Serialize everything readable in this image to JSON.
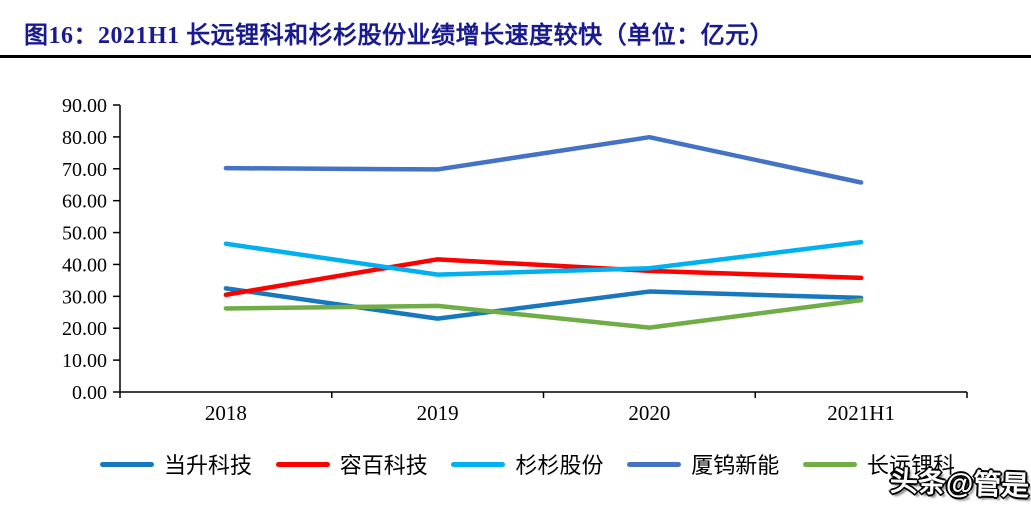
{
  "title": {
    "text": "图16：2021H1 长远锂科和杉杉股份业绩增长速度较快（单位：亿元）"
  },
  "watermark": {
    "text": "头条@管是"
  },
  "chart_data": {
    "type": "line",
    "title": "2021H1 长远锂科和杉杉股份业绩增长速度较快",
    "unit": "亿元",
    "categories": [
      "2018",
      "2019",
      "2020",
      "2021H1"
    ],
    "series": [
      {
        "name": "当升科技",
        "color": "#1778be",
        "values": [
          32.5,
          23.0,
          31.5,
          29.5
        ]
      },
      {
        "name": "容百科技",
        "color": "#fe0000",
        "values": [
          30.5,
          41.6,
          38.0,
          35.8
        ]
      },
      {
        "name": "杉杉股份",
        "color": "#00b0f0",
        "values": [
          46.5,
          36.8,
          38.8,
          47.0
        ]
      },
      {
        "name": "厦钨新能",
        "color": "#4472c4",
        "values": [
          70.2,
          69.8,
          79.9,
          65.7
        ]
      },
      {
        "name": "长远锂科",
        "color": "#70ad47",
        "values": [
          26.2,
          27.0,
          20.2,
          28.8
        ]
      }
    ],
    "ylim": [
      0,
      90
    ],
    "ytick_step": 10,
    "ytick_label_decimals": 2,
    "xlabel": "",
    "ylabel": "",
    "grid": false,
    "legend_position": "bottom"
  }
}
